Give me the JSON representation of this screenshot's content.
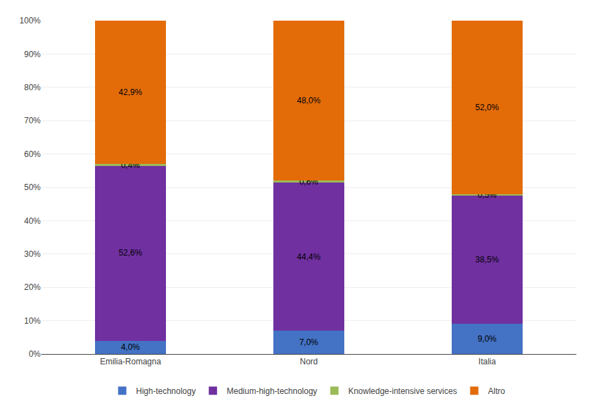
{
  "chart_data": {
    "type": "bar",
    "stacked": true,
    "categories": [
      "Emilia-Romagna",
      "Nord",
      "Italia"
    ],
    "series": [
      {
        "name": "High-technology",
        "color": "#4472C4",
        "values": [
          4.0,
          7.0,
          9.0
        ],
        "value_labels": [
          "4,0%",
          "7,0%",
          "9,0%"
        ]
      },
      {
        "name": "Medium-high-technology",
        "color": "#7030A0",
        "values": [
          52.6,
          44.4,
          38.5
        ],
        "value_labels": [
          "52,6%",
          "44,4%",
          "38,5%"
        ]
      },
      {
        "name": "Knowledge-intensive services",
        "color": "#9BBB59",
        "values": [
          0.4,
          0.6,
          0.5
        ],
        "value_labels": [
          "0,4%",
          "0,6%",
          "0,5%"
        ]
      },
      {
        "name": "Altro",
        "color": "#E36C09",
        "values": [
          42.9,
          48.0,
          52.0
        ],
        "value_labels": [
          "42,9%",
          "48,0%",
          "52,0%"
        ]
      }
    ],
    "ylim": [
      0,
      100
    ],
    "yticks": [
      {
        "value": 0,
        "label": "0%"
      },
      {
        "value": 10,
        "label": "10%"
      },
      {
        "value": 20,
        "label": "20%"
      },
      {
        "value": 30,
        "label": "30%"
      },
      {
        "value": 40,
        "label": "40%"
      },
      {
        "value": 50,
        "label": "50%"
      },
      {
        "value": 60,
        "label": "60%"
      },
      {
        "value": 70,
        "label": "70%"
      },
      {
        "value": 80,
        "label": "80%"
      },
      {
        "value": 90,
        "label": "90%"
      },
      {
        "value": 100,
        "label": "100%"
      }
    ],
    "grid": true,
    "data_labels": true,
    "legend": "bottom"
  }
}
